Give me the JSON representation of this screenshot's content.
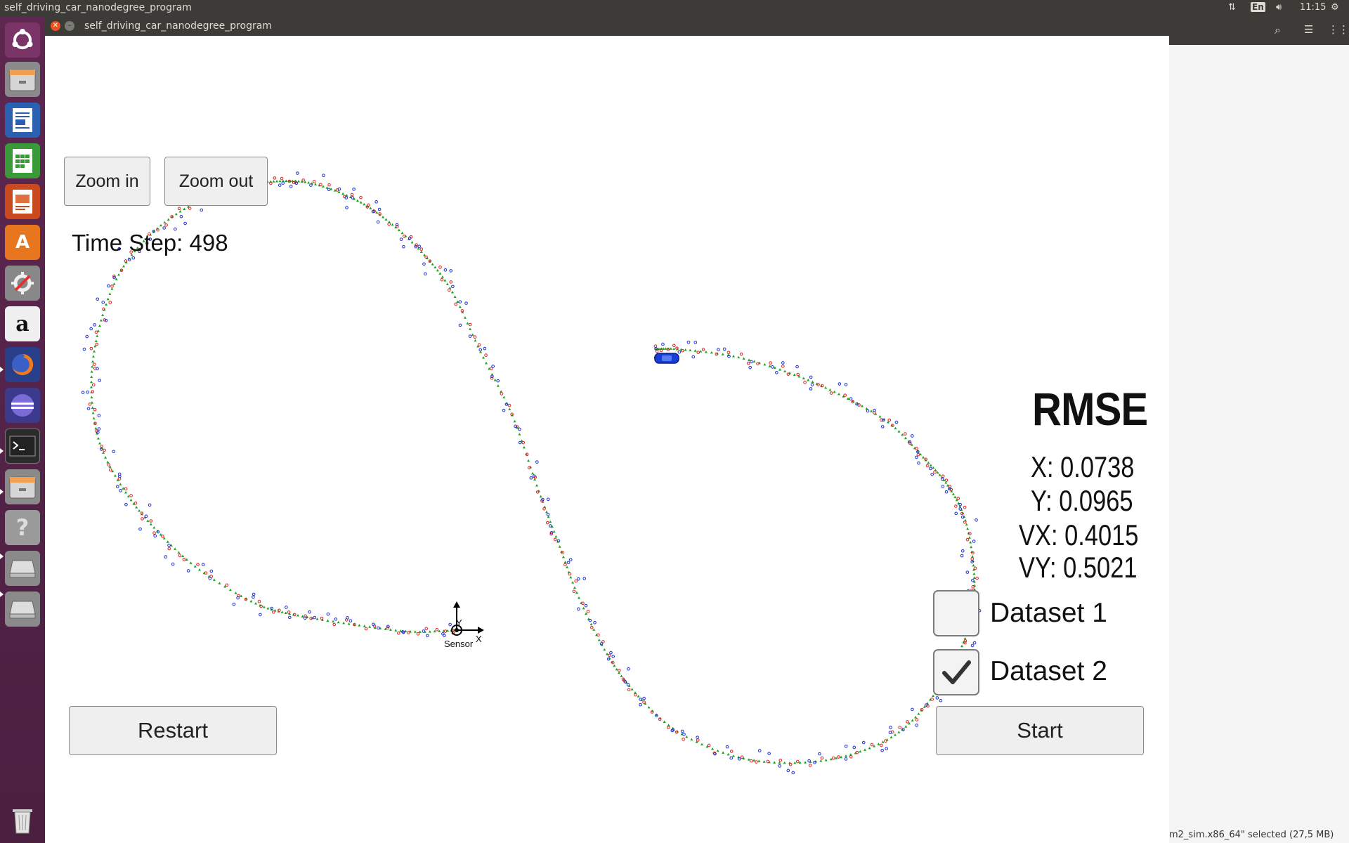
{
  "topbar": {
    "title": "self_driving_car_nanodegree_program",
    "keyboard_layout": "En",
    "time": "11:15"
  },
  "launcher": {
    "icons": [
      "ubuntu-dash-icon",
      "files-icon",
      "writer-icon",
      "calc-icon",
      "impress-icon",
      "software-center-icon",
      "system-settings-icon",
      "amazon-icon",
      "firefox-icon",
      "eclipse-icon",
      "terminal-icon",
      "files-icon",
      "help-icon",
      "drive-icon",
      "drive-icon",
      "trash-icon"
    ]
  },
  "window": {
    "title": "self_driving_car_nanodegree_program"
  },
  "background_window": {
    "status": "m2_sim.x86_64\" selected  (27,5 MB)"
  },
  "sim": {
    "zoom_in": "Zoom in",
    "zoom_out": "Zoom out",
    "time_step": "Time Step: 498",
    "rmse_title": "RMSE",
    "rmse": {
      "x": "X: 0.0738",
      "y": "Y: 0.0965",
      "vx": "VX: 0.4015",
      "vy": "VY: 0.5021"
    },
    "dataset1": {
      "label": "Dataset 1",
      "checked": false
    },
    "dataset2": {
      "label": "Dataset 2",
      "checked": true
    },
    "restart": "Restart",
    "start": "Start",
    "sensor_label": "Sensor",
    "axis_x": "X",
    "axis_y": "Y",
    "colors": {
      "estimate": "#1aa51a",
      "lidar": "#e02020",
      "radar": "#1a2fd6",
      "car": "#1a3fd8"
    }
  }
}
